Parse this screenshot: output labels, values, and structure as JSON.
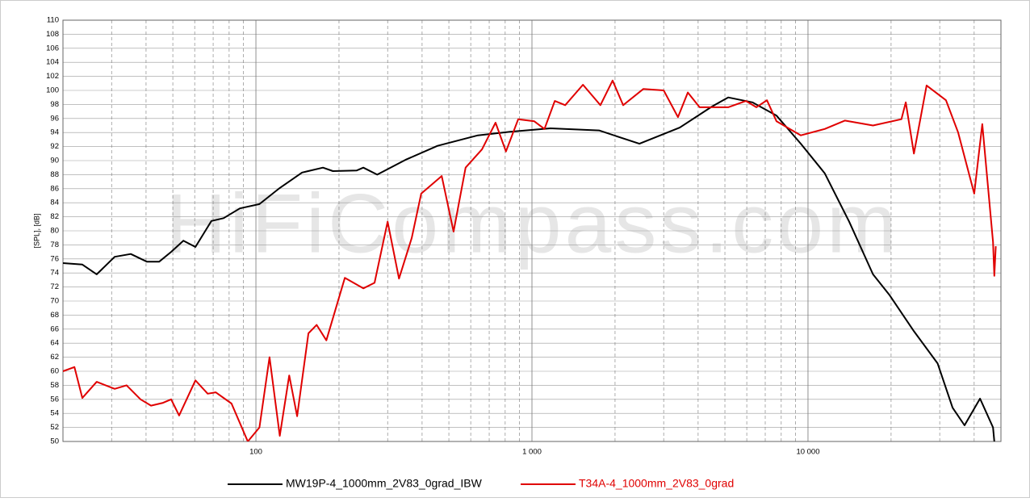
{
  "chart_data": {
    "type": "line",
    "watermark": "HiFiCompass.com",
    "y_label": "[SPL], [dB]",
    "log_x": true,
    "grid": true,
    "legend": "bottom",
    "xlim": [
      20,
      50000
    ],
    "ylim": [
      50,
      110
    ],
    "yticks": [
      50,
      52,
      54,
      56,
      58,
      60,
      62,
      64,
      66,
      68,
      70,
      72,
      74,
      76,
      78,
      80,
      82,
      84,
      86,
      88,
      90,
      92,
      94,
      96,
      98,
      100,
      102,
      104,
      106,
      108,
      110
    ],
    "xticks": [
      {
        "value": 100,
        "label": "100"
      },
      {
        "value": 1000,
        "label": "1 000"
      },
      {
        "value": 10000,
        "label": "10 000"
      }
    ],
    "xminorticks": [
      30,
      40,
      50,
      60,
      70,
      80,
      90,
      200,
      300,
      400,
      500,
      600,
      700,
      800,
      900,
      2000,
      3000,
      4000,
      5000,
      6000,
      7000,
      8000,
      9000,
      20000,
      30000,
      40000
    ],
    "series": [
      {
        "name": "MW19P-4_1000mm_2V83_0grad_IBW",
        "color": "#000000",
        "x": [
          20,
          23.5,
          26.5,
          30.8,
          35.2,
          40.3,
          44.6,
          49.3,
          54.6,
          60.4,
          69,
          76.4,
          87.5,
          103,
          122,
          147,
          175,
          190,
          232,
          245,
          275,
          348,
          455,
          637,
          834,
          1167,
          1750,
          2450,
          3430,
          4490,
          5140,
          6290,
          7690,
          9420,
          11500,
          14100,
          17200,
          19700,
          24200,
          29500,
          33400,
          36900,
          42000,
          46800,
          47300
        ],
        "values": [
          75.4,
          75.2,
          73.8,
          76.3,
          76.7,
          75.6,
          75.6,
          77,
          78.6,
          77.7,
          81.4,
          81.8,
          83.2,
          83.8,
          86.1,
          88.3,
          89,
          88.5,
          88.6,
          89,
          88,
          90.1,
          92.1,
          93.6,
          94.1,
          94.6,
          94.3,
          92.4,
          94.7,
          97.7,
          99,
          98.3,
          96.4,
          92.4,
          88.2,
          81.3,
          73.8,
          70.9,
          65.7,
          61.1,
          54.8,
          52.3,
          56.1,
          52,
          50
        ]
      },
      {
        "name": "T34A-4_1000mm_2V83_0grad",
        "color": "#e00000",
        "x": [
          20,
          22,
          23.5,
          26.5,
          30.8,
          34,
          38.2,
          41.7,
          46.1,
          49.3,
          52.7,
          60.4,
          66.9,
          71.5,
          81.6,
          93.5,
          103,
          112,
          122,
          132,
          141,
          155,
          166,
          180,
          210,
          245,
          269,
          300,
          330,
          367,
          397,
          471,
          520,
          575,
          659,
          738,
          805,
          892,
          1020,
          1110,
          1210,
          1320,
          1530,
          1770,
          1960,
          2140,
          2530,
          3000,
          3380,
          3670,
          4050,
          5140,
          5960,
          6500,
          7100,
          7690,
          9420,
          11500,
          13600,
          17200,
          21800,
          22600,
          24200,
          26900,
          31600,
          35000,
          40000,
          42800,
          46800,
          47300,
          47900
        ],
        "values": [
          60,
          60.6,
          56.2,
          58.5,
          57.5,
          58,
          56,
          55.1,
          55.5,
          56,
          53.7,
          58.7,
          56.8,
          57,
          55.4,
          50,
          52,
          62,
          50.8,
          59.4,
          53.6,
          65.4,
          66.6,
          64.4,
          73.3,
          71.8,
          72.6,
          81.3,
          73.2,
          79,
          85.3,
          87.8,
          79.9,
          89,
          91.6,
          95.4,
          91.3,
          95.9,
          95.6,
          94.5,
          98.5,
          97.9,
          100.8,
          97.9,
          101.4,
          97.9,
          100.2,
          100,
          96.2,
          99.7,
          97.6,
          97.6,
          98.5,
          97.6,
          98.6,
          95.6,
          93.6,
          94.5,
          95.7,
          95,
          95.9,
          98.3,
          91,
          100.7,
          98.6,
          94,
          85.3,
          95.2,
          78.4,
          73.6,
          77.8
        ]
      }
    ]
  }
}
